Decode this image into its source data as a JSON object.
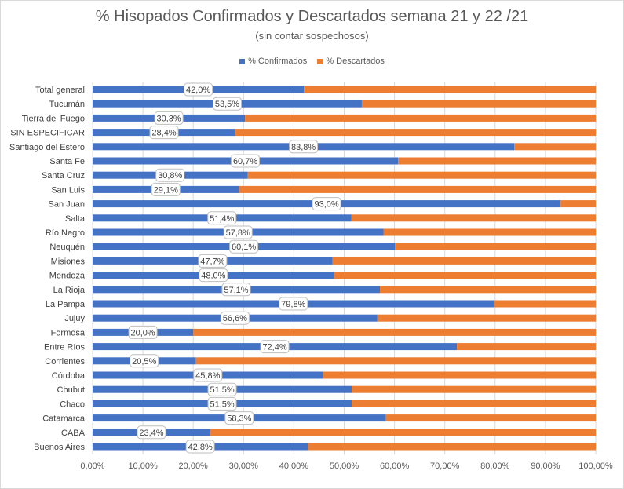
{
  "chart_data": {
    "type": "bar",
    "orientation": "horizontal",
    "stacked": true,
    "title": "% Hisopados Confirmados y Descartados semana 21 y 22 /21",
    "subtitle": "(sin contar sospechosos)",
    "xlim": [
      0,
      100
    ],
    "xticks": [
      "0,00%",
      "10,00%",
      "20,00%",
      "30,00%",
      "40,00%",
      "50,00%",
      "60,00%",
      "70,00%",
      "80,00%",
      "90,00%",
      "100,00%"
    ],
    "grid": "vertical",
    "legend_position": "top",
    "categories": [
      "Total general",
      "Tucumán",
      "Tierra del Fuego",
      "SIN ESPECIFICAR",
      "Santiago del Estero",
      "Santa Fe",
      "Santa Cruz",
      "San Luis",
      "San Juan",
      "Salta",
      "Río Negro",
      "Neuquén",
      "Misiones",
      "Mendoza",
      "La Rioja",
      "La Pampa",
      "Jujuy",
      "Formosa",
      "Entre Ríos",
      "Corrientes",
      "Córdoba",
      "Chubut",
      "Chaco",
      "Catamarca",
      "CABA",
      "Buenos Aires"
    ],
    "series": [
      {
        "name": "% Confirmados",
        "color": "#4472c4",
        "values": [
          42.0,
          53.5,
          30.3,
          28.4,
          83.8,
          60.7,
          30.8,
          29.1,
          93.0,
          51.4,
          57.8,
          60.1,
          47.7,
          48.0,
          57.1,
          79.8,
          56.6,
          20.0,
          72.4,
          20.5,
          45.8,
          51.5,
          51.5,
          58.3,
          23.4,
          42.8
        ]
      },
      {
        "name": "% Descartados",
        "color": "#ed7d31",
        "values": [
          58.0,
          46.5,
          69.7,
          71.6,
          16.2,
          39.3,
          69.2,
          70.9,
          7.0,
          48.6,
          42.2,
          39.9,
          52.3,
          52.0,
          42.9,
          20.2,
          43.4,
          80.0,
          27.6,
          79.5,
          54.2,
          48.5,
          48.5,
          41.7,
          76.6,
          57.2
        ]
      }
    ],
    "data_labels": [
      "42,0%",
      "53,5%",
      "30,3%",
      "28,4%",
      "83,8%",
      "60,7%",
      "30,8%",
      "29,1%",
      "93,0%",
      "51,4%",
      "57,8%",
      "60,1%",
      "47,7%",
      "48,0%",
      "57,1%",
      "79,8%",
      "56,6%",
      "20,0%",
      "72,4%",
      "20,5%",
      "45,8%",
      "51,5%",
      "51,5%",
      "58,3%",
      "23,4%",
      "42,8%"
    ]
  }
}
